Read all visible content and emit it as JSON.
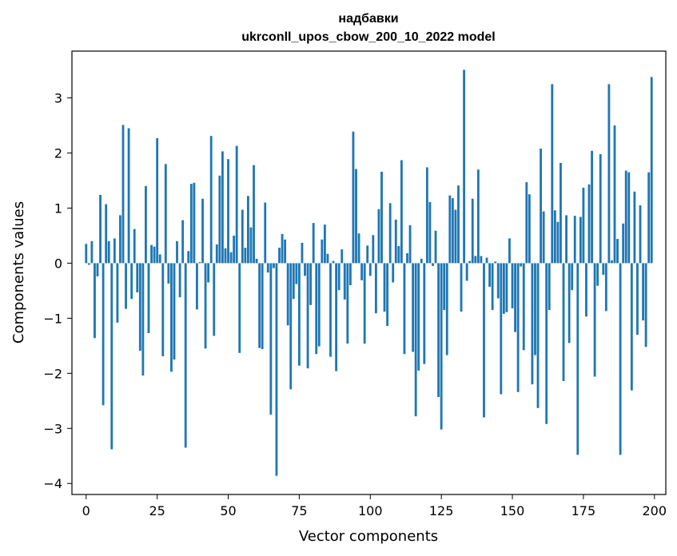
{
  "chart_data": {
    "type": "bar",
    "title": "надбавки",
    "subtitle": "ukrconll_upos_cbow_200_10_2022 model",
    "xlabel": "Vector components",
    "ylabel": "Components values",
    "bar_color": "#1f77b4",
    "xlim": [
      -5,
      204
    ],
    "ylim": [
      -4.2,
      3.85
    ],
    "grid": false,
    "x_ticks": [
      0,
      25,
      50,
      75,
      100,
      125,
      150,
      175,
      200
    ],
    "y_ticks": [
      -4,
      -3,
      -2,
      -1,
      0,
      1,
      2,
      3
    ],
    "values": [
      0.35,
      -0.03,
      0.4,
      -1.36,
      -0.24,
      1.24,
      -2.58,
      1.07,
      0.4,
      -3.38,
      0.45,
      -1.08,
      0.87,
      2.51,
      -0.83,
      2.45,
      -0.65,
      0.62,
      -0.53,
      -1.59,
      -2.04,
      1.4,
      -1.27,
      0.33,
      0.3,
      2.27,
      0.16,
      -1.69,
      1.8,
      -0.37,
      -1.97,
      -1.75,
      0.4,
      -0.62,
      0.78,
      -3.35,
      0.22,
      1.44,
      1.46,
      -0.84,
      0.02,
      1.17,
      -1.55,
      -0.35,
      2.31,
      -1.32,
      0.34,
      1.59,
      2.03,
      0.27,
      1.89,
      0.2,
      0.5,
      2.13,
      -1.63,
      0.97,
      0.28,
      1.22,
      0.65,
      1.78,
      0.08,
      -1.54,
      -1.56,
      1.1,
      -0.17,
      -2.75,
      -0.09,
      -3.86,
      0.28,
      0.53,
      0.43,
      -1.13,
      -2.29,
      -0.65,
      -0.38,
      -1.86,
      0.37,
      -0.23,
      -1.91,
      -0.76,
      0.73,
      -1.65,
      -1.51,
      0.43,
      0.7,
      0.17,
      -1.7,
      0.04,
      -1.96,
      -0.49,
      0.25,
      -0.66,
      -1.46,
      -0.4,
      2.39,
      1.71,
      0.54,
      -0.31,
      -1.46,
      0.32,
      -0.23,
      0.51,
      -0.91,
      0.98,
      1.66,
      -0.88,
      -1.14,
      1.09,
      -0.35,
      0.79,
      0.31,
      1.87,
      -1.65,
      0.18,
      0.69,
      -1.61,
      -2.78,
      -1.95,
      0.08,
      -1.83,
      1.74,
      1.11,
      -0.05,
      0.59,
      -2.43,
      -3.02,
      -0.85,
      -1.67,
      1.23,
      1.18,
      0.97,
      1.41,
      -0.88,
      3.51,
      -0.32,
      0.04,
      1.17,
      0.13,
      1.7,
      0.13,
      -2.8,
      0.1,
      -0.43,
      -0.85,
      0.03,
      -0.64,
      -2.38,
      -0.92,
      -0.89,
      0.45,
      -0.82,
      -1.25,
      -2.34,
      -0.06,
      -1.58,
      1.47,
      1.25,
      -2.2,
      -1.67,
      -2.63,
      2.08,
      0.94,
      -2.92,
      -0.85,
      3.25,
      0.96,
      0.75,
      1.82,
      -2.14,
      0.87,
      -1.45,
      -0.49,
      0.86,
      -3.48,
      0.84,
      1.37,
      -0.97,
      1.43,
      2.04,
      -2.06,
      -0.41,
      1.98,
      -0.21,
      -0.87,
      3.25,
      0.05,
      2.5,
      0.44,
      -3.48,
      0.72,
      1.68,
      1.65,
      -2.31,
      1.3,
      -1.3,
      1.05,
      -1.04,
      -1.52,
      1.65,
      3.38
    ]
  }
}
